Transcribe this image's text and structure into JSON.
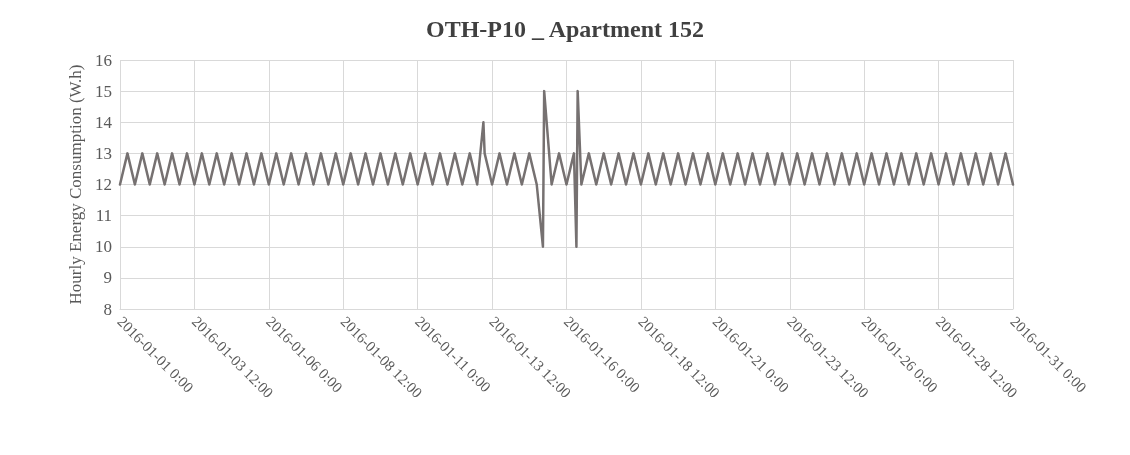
{
  "chart_data": {
    "type": "line",
    "title": "OTH-P10 _ Apartment 152",
    "ylabel": "Hourly Energy Consumption (W.h)",
    "series": [
      {
        "color": "#767171",
        "x": [
          "2016-01-01T00:00",
          "2016-01-01T06:00",
          "2016-01-01T12:00",
          "2016-01-01T18:00",
          "2016-01-02T00:00",
          "2016-01-02T06:00",
          "2016-01-02T12:00",
          "2016-01-02T18:00",
          "2016-01-03T00:00",
          "2016-01-03T06:00",
          "2016-01-03T12:00",
          "2016-01-03T18:00",
          "2016-01-04T00:00",
          "2016-01-04T06:00",
          "2016-01-04T12:00",
          "2016-01-04T18:00",
          "2016-01-05T00:00",
          "2016-01-05T06:00",
          "2016-01-05T12:00",
          "2016-01-05T18:00",
          "2016-01-06T00:00",
          "2016-01-06T06:00",
          "2016-01-06T12:00",
          "2016-01-06T18:00",
          "2016-01-07T00:00",
          "2016-01-07T06:00",
          "2016-01-07T12:00",
          "2016-01-07T18:00",
          "2016-01-08T00:00",
          "2016-01-08T06:00",
          "2016-01-08T12:00",
          "2016-01-08T18:00",
          "2016-01-09T00:00",
          "2016-01-09T06:00",
          "2016-01-09T12:00",
          "2016-01-09T18:00",
          "2016-01-10T00:00",
          "2016-01-10T06:00",
          "2016-01-10T12:00",
          "2016-01-10T18:00",
          "2016-01-11T00:00",
          "2016-01-11T06:00",
          "2016-01-11T12:00",
          "2016-01-11T18:00",
          "2016-01-12T00:00",
          "2016-01-12T06:00",
          "2016-01-12T12:00",
          "2016-01-12T18:00",
          "2016-01-13T00:00",
          "2016-01-13T05:00",
          "2016-01-13T06:00",
          "2016-01-13T12:00",
          "2016-01-13T18:00",
          "2016-01-14T00:00",
          "2016-01-14T06:00",
          "2016-01-14T12:00",
          "2016-01-14T18:00",
          "2016-01-15T00:00",
          "2016-01-15T05:00",
          "2016-01-15T06:00",
          "2016-01-15T12:00",
          "2016-01-15T18:00",
          "2016-01-16T00:00",
          "2016-01-16T06:00",
          "2016-01-16T08:00",
          "2016-01-16T09:00",
          "2016-01-16T12:00",
          "2016-01-16T18:00",
          "2016-01-17T00:00",
          "2016-01-17T06:00",
          "2016-01-17T12:00",
          "2016-01-17T18:00",
          "2016-01-18T00:00",
          "2016-01-18T06:00",
          "2016-01-18T12:00",
          "2016-01-18T18:00",
          "2016-01-19T00:00",
          "2016-01-19T06:00",
          "2016-01-19T12:00",
          "2016-01-19T18:00",
          "2016-01-20T00:00",
          "2016-01-20T06:00",
          "2016-01-20T12:00",
          "2016-01-20T18:00",
          "2016-01-21T00:00",
          "2016-01-21T06:00",
          "2016-01-21T12:00",
          "2016-01-21T18:00",
          "2016-01-22T00:00",
          "2016-01-22T06:00",
          "2016-01-22T12:00",
          "2016-01-22T18:00",
          "2016-01-23T00:00",
          "2016-01-23T06:00",
          "2016-01-23T12:00",
          "2016-01-23T18:00",
          "2016-01-24T00:00",
          "2016-01-24T06:00",
          "2016-01-24T12:00",
          "2016-01-24T18:00",
          "2016-01-25T00:00",
          "2016-01-25T06:00",
          "2016-01-25T12:00",
          "2016-01-25T18:00",
          "2016-01-26T00:00",
          "2016-01-26T06:00",
          "2016-01-26T12:00",
          "2016-01-26T18:00",
          "2016-01-27T00:00",
          "2016-01-27T06:00",
          "2016-01-27T12:00",
          "2016-01-27T18:00",
          "2016-01-28T00:00",
          "2016-01-28T06:00",
          "2016-01-28T12:00",
          "2016-01-28T18:00",
          "2016-01-29T00:00",
          "2016-01-29T06:00",
          "2016-01-29T12:00",
          "2016-01-29T18:00",
          "2016-01-30T00:00",
          "2016-01-30T06:00",
          "2016-01-30T12:00",
          "2016-01-30T18:00",
          "2016-01-31T00:00"
        ],
        "values": [
          12,
          13,
          12,
          13,
          12,
          13,
          12,
          13,
          12,
          13,
          12,
          13,
          12,
          13,
          12,
          13,
          12,
          13,
          12,
          13,
          12,
          13,
          12,
          13,
          12,
          13,
          12,
          13,
          12,
          13,
          12,
          13,
          12,
          13,
          12,
          13,
          12,
          13,
          12,
          13,
          12,
          13,
          12,
          13,
          12,
          13,
          12,
          13,
          12,
          14,
          13,
          12,
          13,
          12,
          13,
          12,
          13,
          12,
          10,
          15,
          12,
          13,
          12,
          13,
          10,
          15,
          12,
          13,
          12,
          13,
          12,
          13,
          12,
          13,
          12,
          13,
          12,
          13,
          12,
          13,
          12,
          13,
          12,
          13,
          12,
          13,
          12,
          13,
          12,
          13,
          12,
          13,
          12,
          13,
          12,
          13,
          12,
          13,
          12,
          13,
          12,
          13,
          12,
          13,
          12,
          13,
          12,
          13,
          12,
          13,
          12,
          13,
          12,
          13,
          12,
          13,
          12,
          13,
          12,
          13,
          12,
          13,
          12,
          13,
          12
        ]
      }
    ],
    "xlim": [
      "2016-01-01T00:00",
      "2016-01-31T00:00"
    ],
    "xticks": [
      {
        "value": "2016-01-01T00:00",
        "label": "2016-01-01 0:00"
      },
      {
        "value": "2016-01-03T12:00",
        "label": "2016-01-03 12:00"
      },
      {
        "value": "2016-01-06T00:00",
        "label": "2016-01-06 0:00"
      },
      {
        "value": "2016-01-08T12:00",
        "label": "2016-01-08 12:00"
      },
      {
        "value": "2016-01-11T00:00",
        "label": "2016-01-11 0:00"
      },
      {
        "value": "2016-01-13T12:00",
        "label": "2016-01-13 12:00"
      },
      {
        "value": "2016-01-16T00:00",
        "label": "2016-01-16 0:00"
      },
      {
        "value": "2016-01-18T12:00",
        "label": "2016-01-18 12:00"
      },
      {
        "value": "2016-01-21T00:00",
        "label": "2016-01-21 0:00"
      },
      {
        "value": "2016-01-23T12:00",
        "label": "2016-01-23 12:00"
      },
      {
        "value": "2016-01-26T00:00",
        "label": "2016-01-26 0:00"
      },
      {
        "value": "2016-01-28T12:00",
        "label": "2016-01-28 12:00"
      },
      {
        "value": "2016-01-31T00:00",
        "label": "2016-01-31 0:00"
      }
    ],
    "ylim": [
      8,
      16
    ],
    "yticks": [
      8,
      9,
      10,
      11,
      12,
      13,
      14,
      15,
      16
    ],
    "grid": true,
    "marker": "none",
    "line_style": "solid"
  }
}
